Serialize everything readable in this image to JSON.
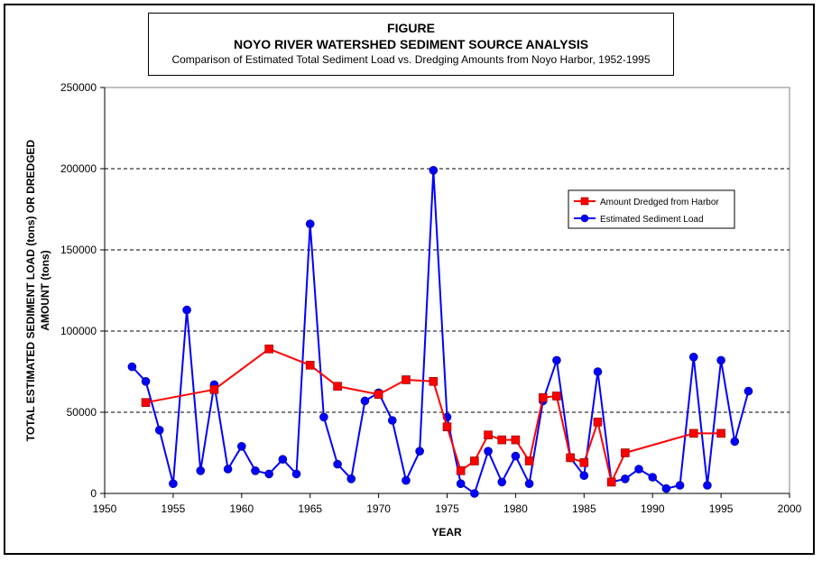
{
  "header": {
    "figure_label": "FIGURE",
    "title": "NOYO RIVER WATERSHED SEDIMENT SOURCE ANALYSIS",
    "subtitle": "Comparison of Estimated Total Sediment Load vs. Dredging Amounts from Noyo Harbor, 1952-1995"
  },
  "chart_data": {
    "type": "line",
    "title": "NOYO RIVER WATERSHED SEDIMENT SOURCE ANALYSIS",
    "subtitle": "Comparison of Estimated Total Sediment Load vs. Dredging Amounts from Noyo Harbor, 1952-1995",
    "xlabel": "YEAR",
    "ylabel_line1": "TOTAL ESTIMATED SEDIMENT LOAD (tons) OR DREDGED",
    "ylabel_line2": "AMOUNT (tons)",
    "xlim": [
      1950,
      2000
    ],
    "ylim": [
      0,
      250000
    ],
    "xticks": [
      1950,
      1955,
      1960,
      1965,
      1970,
      1975,
      1980,
      1985,
      1990,
      1995,
      2000
    ],
    "yticks": [
      0,
      50000,
      100000,
      150000,
      200000,
      250000
    ],
    "grid": "horizontal dashed",
    "legend_position": "right",
    "series": [
      {
        "name": "Amount Dredged from Harbor",
        "color": "#ff0000",
        "marker": "square",
        "marker_fill": "#ff0000",
        "x": [
          1953,
          1958,
          1962,
          1965,
          1967,
          1970,
          1972,
          1974,
          1975,
          1976,
          1977,
          1978,
          1979,
          1980,
          1981,
          1982,
          1983,
          1984,
          1985,
          1986,
          1987,
          1988,
          1993,
          1995
        ],
        "y": [
          56000,
          64000,
          89000,
          79000,
          66000,
          61000,
          70000,
          69000,
          41000,
          14000,
          20000,
          36000,
          33000,
          33000,
          20000,
          59000,
          60000,
          22000,
          19000,
          44000,
          7000,
          25000,
          37000,
          37000
        ]
      },
      {
        "name": "Estimated Sediment Load",
        "color": "#0000ff",
        "marker": "circle",
        "marker_fill": "#0000ff",
        "x": [
          1952,
          1953,
          1954,
          1955,
          1956,
          1957,
          1958,
          1959,
          1960,
          1961,
          1962,
          1963,
          1964,
          1965,
          1966,
          1967,
          1968,
          1969,
          1970,
          1971,
          1972,
          1973,
          1974,
          1975,
          1976,
          1977,
          1978,
          1979,
          1980,
          1981,
          1982,
          1983,
          1984,
          1985,
          1986,
          1987,
          1988,
          1989,
          1990,
          1991,
          1992,
          1993,
          1994,
          1995,
          1996,
          1997
        ],
        "y": [
          78000,
          69000,
          39000,
          6000,
          113000,
          14000,
          67000,
          15000,
          29000,
          14000,
          12000,
          21000,
          12000,
          166000,
          47000,
          18000,
          9000,
          57000,
          62000,
          45000,
          8000,
          26000,
          199000,
          47000,
          6000,
          0,
          26000,
          7000,
          23000,
          6000,
          57000,
          82000,
          22000,
          11000,
          75000,
          7000,
          9000,
          15000,
          10000,
          3000,
          5000,
          84000,
          5000,
          82000,
          32000,
          63000
        ]
      }
    ]
  }
}
